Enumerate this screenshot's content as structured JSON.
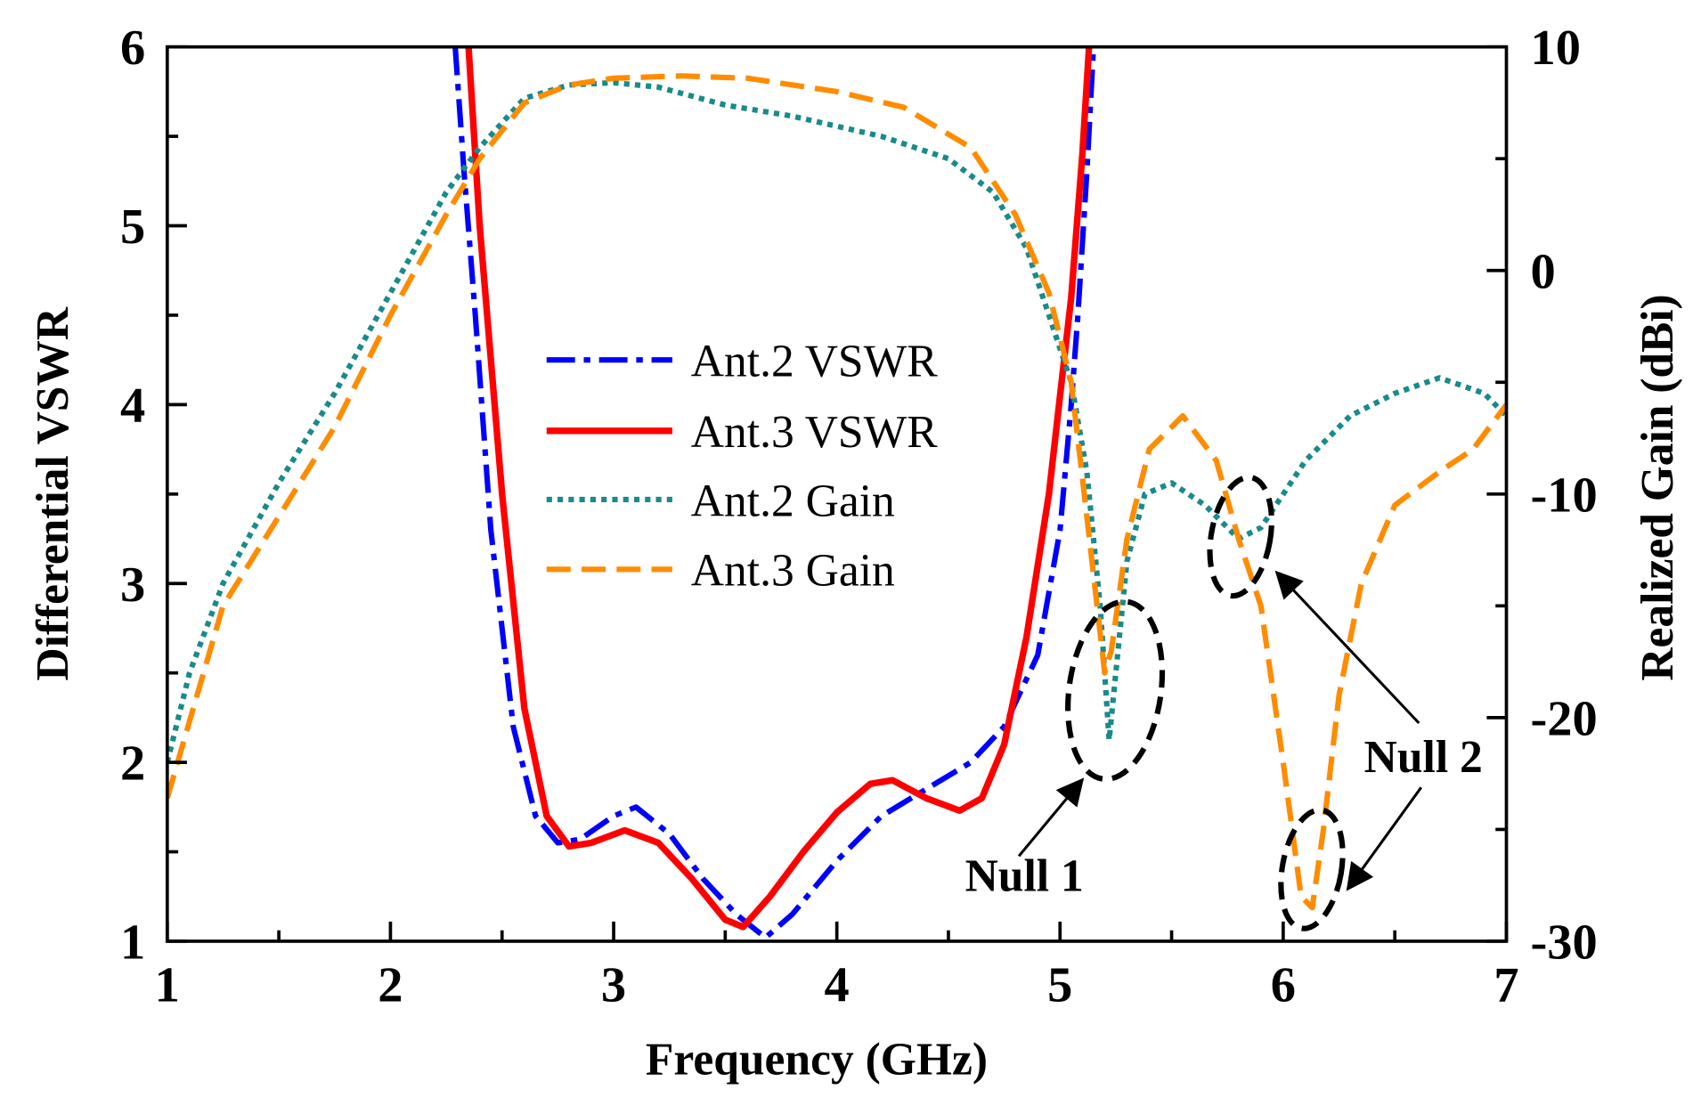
{
  "chart_data": {
    "type": "line",
    "xlabel": "Frequency (GHz)",
    "ylabel": "Differential VSWR",
    "y2label": "Realized Gain (dBi)",
    "xlim": [
      1,
      7
    ],
    "ylim": [
      1,
      6
    ],
    "y2lim": [
      -30,
      10
    ],
    "xticks": [
      "1",
      "2",
      "3",
      "4",
      "5",
      "6",
      "7"
    ],
    "yticks": [
      "1",
      "2",
      "3",
      "4",
      "5",
      "6"
    ],
    "y2ticks": [
      "-30",
      "-20",
      "-10",
      "0",
      "10"
    ],
    "legend_position": "center-left",
    "series": [
      {
        "name": "Ant.2 VSWR",
        "axis": "left",
        "color": "#0000ff",
        "style": "dashdot",
        "x": [
          2.29,
          2.33,
          2.38,
          2.45,
          2.55,
          2.65,
          2.75,
          2.85,
          3.0,
          3.1,
          3.25,
          3.4,
          3.55,
          3.68,
          3.8,
          4.0,
          4.2,
          4.4,
          4.6,
          4.75,
          4.9,
          5.0,
          5.05,
          5.08,
          5.12,
          5.15
        ],
        "y": [
          6,
          5.3,
          4.5,
          3.3,
          2.2,
          1.7,
          1.55,
          1.57,
          1.7,
          1.75,
          1.6,
          1.35,
          1.15,
          1.02,
          1.15,
          1.45,
          1.7,
          1.85,
          2.0,
          2.2,
          2.6,
          3.3,
          4.0,
          4.5,
          5.3,
          6
        ]
      },
      {
        "name": "Ant.3 VSWR",
        "axis": "left",
        "color": "#ff0000",
        "style": "solid",
        "x": [
          2.35,
          2.4,
          2.5,
          2.6,
          2.7,
          2.8,
          2.9,
          3.05,
          3.2,
          3.35,
          3.5,
          3.58,
          3.7,
          3.85,
          4.0,
          4.15,
          4.25,
          4.4,
          4.55,
          4.65,
          4.75,
          4.85,
          4.95,
          5.05,
          5.1,
          5.13
        ],
        "y": [
          6,
          5.0,
          3.5,
          2.3,
          1.7,
          1.53,
          1.55,
          1.62,
          1.55,
          1.35,
          1.12,
          1.08,
          1.25,
          1.5,
          1.72,
          1.88,
          1.9,
          1.8,
          1.73,
          1.8,
          2.1,
          2.7,
          3.5,
          4.6,
          5.4,
          6
        ]
      },
      {
        "name": "Ant.2 Gain",
        "axis": "right",
        "color": "#1a8a8a",
        "style": "dotted",
        "x": [
          1,
          1.1,
          1.25,
          1.5,
          1.75,
          2,
          2.25,
          2.4,
          2.6,
          2.8,
          3.0,
          3.2,
          3.5,
          3.8,
          4.2,
          4.5,
          4.7,
          4.85,
          4.95,
          5.05,
          5.12,
          5.18,
          5.22,
          5.25,
          5.3,
          5.38,
          5.5,
          5.65,
          5.8,
          5.9,
          6.1,
          6.3,
          6.5,
          6.7,
          6.9,
          7
        ],
        "y": [
          -22,
          -18,
          -14,
          -9.5,
          -5.5,
          -1,
          3.5,
          5.5,
          7.7,
          8.3,
          8.4,
          8.2,
          7.4,
          6.9,
          6.0,
          5.0,
          3.5,
          1,
          -2,
          -5,
          -9,
          -15,
          -21,
          -18,
          -13,
          -10,
          -9.5,
          -10.5,
          -12,
          -11.5,
          -8.5,
          -6.5,
          -5.5,
          -4.8,
          -5.5,
          -6.5
        ]
      },
      {
        "name": "Ant.3 Gain",
        "axis": "right",
        "color": "#ff8c00",
        "style": "dashed",
        "x": [
          1,
          1.25,
          1.5,
          1.75,
          2.0,
          2.25,
          2.4,
          2.6,
          2.8,
          3.0,
          3.3,
          3.6,
          4.0,
          4.3,
          4.6,
          4.8,
          4.95,
          5.05,
          5.12,
          5.2,
          5.23,
          5.3,
          5.4,
          5.55,
          5.7,
          5.8,
          5.9,
          6.0,
          6.08,
          6.13,
          6.18,
          6.25,
          6.35,
          6.5,
          6.7,
          6.85,
          7
        ],
        "y": [
          -23.6,
          -15,
          -11,
          -7,
          -2,
          2.5,
          5,
          7.5,
          8.3,
          8.6,
          8.7,
          8.6,
          8.0,
          7.3,
          5.5,
          2.5,
          -1,
          -5,
          -11,
          -18,
          -17,
          -12,
          -8,
          -6.5,
          -8.5,
          -12,
          -15,
          -22,
          -28,
          -28.5,
          -25,
          -19,
          -14,
          -10.5,
          -9,
          -8,
          -6
        ]
      }
    ],
    "annotations": [
      {
        "text": "Null 1",
        "at": [
          5.25,
          -21
        ]
      },
      {
        "text": "Null 2",
        "at": [
          5.85,
          -12
        ]
      },
      {
        "text": "Null 2",
        "at": [
          6.15,
          -28
        ]
      }
    ]
  }
}
